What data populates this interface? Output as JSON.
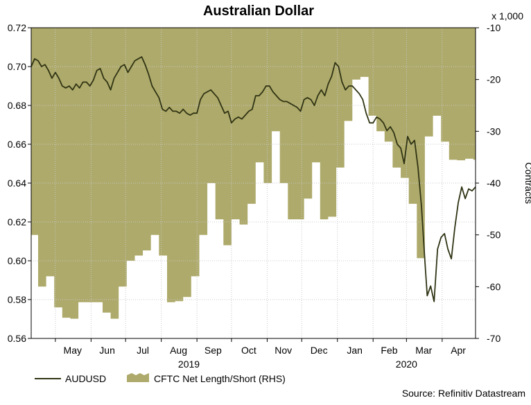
{
  "chart_data": {
    "type": "line",
    "title": "Australian Dollar",
    "source": "Source: Refinitiv Datastream",
    "units_label": "x 1,000",
    "ylabel_right": "Contracts",
    "ylim_left": [
      0.56,
      0.72
    ],
    "yticks_left": [
      "0.72",
      "0.70",
      "0.68",
      "0.66",
      "0.64",
      "0.62",
      "0.60",
      "0.58",
      "0.56"
    ],
    "ylim_right": [
      -70,
      -10
    ],
    "yticks_right": [
      "-10",
      "-20",
      "-30",
      "-40",
      "-50",
      "-60",
      "-70"
    ],
    "xlim": [
      "2019-04-10",
      "2020-04-30"
    ],
    "month_labels": [
      {
        "label": "May",
        "date": "2019-05-16"
      },
      {
        "label": "Jun",
        "date": "2019-06-15"
      },
      {
        "label": "Jul",
        "date": "2019-07-16"
      },
      {
        "label": "Aug",
        "date": "2019-08-16"
      },
      {
        "label": "Sep",
        "date": "2019-09-15"
      },
      {
        "label": "Oct",
        "date": "2019-10-16"
      },
      {
        "label": "Nov",
        "date": "2019-11-15"
      },
      {
        "label": "Dec",
        "date": "2019-12-16"
      },
      {
        "label": "Jan",
        "date": "2020-01-16"
      },
      {
        "label": "Feb",
        "date": "2020-02-15"
      },
      {
        "label": "Mar",
        "date": "2020-03-16"
      },
      {
        "label": "Apr",
        "date": "2020-04-15"
      }
    ],
    "month_boundaries": [
      "2019-05-01",
      "2019-06-01",
      "2019-07-01",
      "2019-08-01",
      "2019-09-01",
      "2019-10-01",
      "2019-11-01",
      "2019-12-01",
      "2020-01-01",
      "2020-02-01",
      "2020-03-01",
      "2020-04-01"
    ],
    "year_labels": [
      {
        "label": "2019",
        "date": "2019-08-25"
      },
      {
        "label": "2020",
        "date": "2020-03-01"
      }
    ],
    "legend": {
      "line": "AUDUSD",
      "area": "CFTC Net Length/Short (RHS)"
    },
    "colors": {
      "line": "#2f3313",
      "area": "#aeaa6b",
      "grid": "#c8c8c8"
    },
    "series": [
      {
        "name": "CFTC Net Length/Short (RHS)",
        "kind": "area",
        "axis": "right",
        "x": [
          "2019-04-10",
          "2019-04-16",
          "2019-04-23",
          "2019-04-30",
          "2019-05-07",
          "2019-05-14",
          "2019-05-21",
          "2019-05-28",
          "2019-06-04",
          "2019-06-11",
          "2019-06-18",
          "2019-06-25",
          "2019-07-02",
          "2019-07-09",
          "2019-07-16",
          "2019-07-23",
          "2019-07-30",
          "2019-08-06",
          "2019-08-13",
          "2019-08-20",
          "2019-08-27",
          "2019-09-03",
          "2019-09-10",
          "2019-09-17",
          "2019-09-24",
          "2019-10-01",
          "2019-10-08",
          "2019-10-15",
          "2019-10-22",
          "2019-10-29",
          "2019-11-05",
          "2019-11-12",
          "2019-11-19",
          "2019-11-26",
          "2019-12-03",
          "2019-12-10",
          "2019-12-17",
          "2019-12-24",
          "2019-12-31",
          "2020-01-07",
          "2020-01-14",
          "2020-01-21",
          "2020-01-28",
          "2020-02-04",
          "2020-02-11",
          "2020-02-18",
          "2020-02-25",
          "2020-03-03",
          "2020-03-10",
          "2020-03-17",
          "2020-03-24",
          "2020-03-31",
          "2020-04-07",
          "2020-04-14",
          "2020-04-21",
          "2020-04-28"
        ],
        "values": [
          -50,
          -60,
          -58,
          -64,
          -66,
          -66.2,
          -63,
          -63,
          -63,
          -65,
          -66.2,
          -60,
          -55,
          -54,
          -53,
          -50,
          -54,
          -63,
          -62.8,
          -62,
          -58,
          -50,
          -40,
          -47,
          -52,
          -47,
          -48,
          -44,
          -36,
          -40,
          -30,
          -40,
          -47,
          -47,
          -43,
          -36,
          -47,
          -46.5,
          -37,
          -28,
          -20,
          -19.5,
          -27,
          -30,
          -32,
          -37,
          -39,
          -44,
          -54.5,
          -31,
          -27,
          -32,
          -35.5,
          -35.6,
          -35.3,
          -35.5
        ]
      },
      {
        "name": "AUDUSD",
        "kind": "line",
        "axis": "left",
        "x": [
          "2019-04-10",
          "2019-04-13",
          "2019-04-16",
          "2019-04-19",
          "2019-04-22",
          "2019-04-25",
          "2019-04-28",
          "2019-05-01",
          "2019-05-04",
          "2019-05-07",
          "2019-05-10",
          "2019-05-13",
          "2019-05-16",
          "2019-05-19",
          "2019-05-22",
          "2019-05-25",
          "2019-05-28",
          "2019-05-31",
          "2019-06-03",
          "2019-06-06",
          "2019-06-09",
          "2019-06-12",
          "2019-06-15",
          "2019-06-18",
          "2019-06-21",
          "2019-06-24",
          "2019-06-27",
          "2019-06-30",
          "2019-07-03",
          "2019-07-06",
          "2019-07-09",
          "2019-07-12",
          "2019-07-15",
          "2019-07-18",
          "2019-07-21",
          "2019-07-24",
          "2019-07-27",
          "2019-07-30",
          "2019-08-02",
          "2019-08-05",
          "2019-08-08",
          "2019-08-11",
          "2019-08-14",
          "2019-08-17",
          "2019-08-20",
          "2019-08-23",
          "2019-08-26",
          "2019-08-29",
          "2019-09-01",
          "2019-09-04",
          "2019-09-07",
          "2019-09-10",
          "2019-09-13",
          "2019-09-16",
          "2019-09-19",
          "2019-09-22",
          "2019-09-25",
          "2019-09-28",
          "2019-10-01",
          "2019-10-04",
          "2019-10-07",
          "2019-10-10",
          "2019-10-13",
          "2019-10-16",
          "2019-10-19",
          "2019-10-22",
          "2019-10-25",
          "2019-10-28",
          "2019-10-31",
          "2019-11-03",
          "2019-11-06",
          "2019-11-09",
          "2019-11-12",
          "2019-11-15",
          "2019-11-18",
          "2019-11-21",
          "2019-11-24",
          "2019-11-27",
          "2019-11-30",
          "2019-12-03",
          "2019-12-06",
          "2019-12-09",
          "2019-12-12",
          "2019-12-15",
          "2019-12-18",
          "2019-12-21",
          "2019-12-24",
          "2019-12-27",
          "2019-12-30",
          "2020-01-02",
          "2020-01-05",
          "2020-01-08",
          "2020-01-11",
          "2020-01-14",
          "2020-01-17",
          "2020-01-20",
          "2020-01-23",
          "2020-01-26",
          "2020-01-29",
          "2020-02-01",
          "2020-02-04",
          "2020-02-07",
          "2020-02-10",
          "2020-02-13",
          "2020-02-16",
          "2020-02-19",
          "2020-02-22",
          "2020-02-25",
          "2020-02-28",
          "2020-03-02",
          "2020-03-05",
          "2020-03-08",
          "2020-03-11",
          "2020-03-14",
          "2020-03-17",
          "2020-03-19",
          "2020-03-22",
          "2020-03-25",
          "2020-03-28",
          "2020-03-31",
          "2020-04-03",
          "2020-04-06",
          "2020-04-09",
          "2020-04-12",
          "2020-04-15",
          "2020-04-18",
          "2020-04-21",
          "2020-04-24",
          "2020-04-27",
          "2020-04-30"
        ],
        "values": [
          0.7,
          0.704,
          0.703,
          0.7,
          0.701,
          0.698,
          0.694,
          0.697,
          0.694,
          0.69,
          0.689,
          0.69,
          0.688,
          0.691,
          0.689,
          0.692,
          0.692,
          0.69,
          0.693,
          0.698,
          0.699,
          0.694,
          0.692,
          0.688,
          0.694,
          0.697,
          0.7,
          0.701,
          0.697,
          0.7,
          0.703,
          0.704,
          0.705,
          0.701,
          0.696,
          0.69,
          0.687,
          0.684,
          0.678,
          0.677,
          0.679,
          0.677,
          0.677,
          0.676,
          0.678,
          0.676,
          0.675,
          0.676,
          0.676,
          0.683,
          0.686,
          0.687,
          0.688,
          0.686,
          0.684,
          0.68,
          0.676,
          0.677,
          0.671,
          0.673,
          0.674,
          0.673,
          0.675,
          0.677,
          0.678,
          0.685,
          0.685,
          0.687,
          0.69,
          0.69,
          0.687,
          0.685,
          0.683,
          0.682,
          0.682,
          0.681,
          0.68,
          0.679,
          0.677,
          0.683,
          0.684,
          0.683,
          0.68,
          0.685,
          0.688,
          0.685,
          0.691,
          0.695,
          0.702,
          0.7,
          0.692,
          0.688,
          0.69,
          0.69,
          0.688,
          0.686,
          0.683,
          0.676,
          0.671,
          0.671,
          0.674,
          0.673,
          0.671,
          0.667,
          0.669,
          0.666,
          0.66,
          0.658,
          0.65,
          0.664,
          0.66,
          0.662,
          0.648,
          0.628,
          0.6,
          0.582,
          0.587,
          0.579,
          0.606,
          0.612,
          0.614,
          0.606,
          0.601,
          0.617,
          0.63,
          0.638,
          0.632,
          0.637,
          0.636,
          0.638
        ]
      }
    ]
  }
}
